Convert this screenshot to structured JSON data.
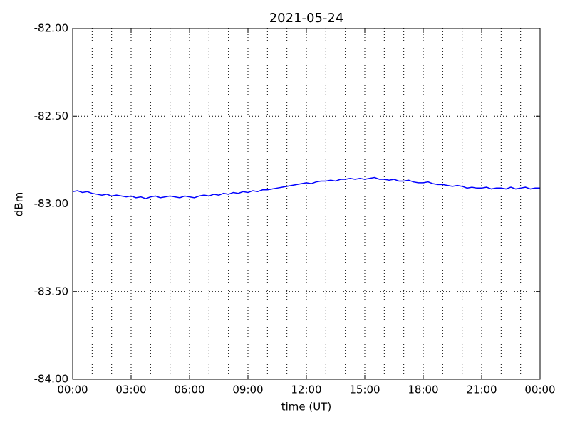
{
  "chart_data": {
    "type": "line",
    "title": "2021-05-24",
    "xlabel": "time (UT)",
    "ylabel": "dBm",
    "xlim": [
      0,
      24
    ],
    "ylim": [
      -84,
      -82
    ],
    "xticks": [
      {
        "value": 0,
        "label": "00:00"
      },
      {
        "value": 3,
        "label": "03:00"
      },
      {
        "value": 6,
        "label": "06:00"
      },
      {
        "value": 9,
        "label": "09:00"
      },
      {
        "value": 12,
        "label": "12:00"
      },
      {
        "value": 15,
        "label": "15:00"
      },
      {
        "value": 18,
        "label": "18:00"
      },
      {
        "value": 21,
        "label": "21:00"
      },
      {
        "value": 24,
        "label": "00:00"
      }
    ],
    "yticks": [
      {
        "value": -84,
        "label": "-84.00"
      },
      {
        "value": -83.5,
        "label": "-83.50"
      },
      {
        "value": -83,
        "label": "-83.00"
      },
      {
        "value": -82.5,
        "label": "-82.50"
      },
      {
        "value": -82,
        "label": "-82.00"
      }
    ],
    "xgrid": [
      0,
      1,
      2,
      3,
      4,
      5,
      6,
      7,
      8,
      9,
      10,
      11,
      12,
      13,
      14,
      15,
      16,
      17,
      18,
      19,
      20,
      21,
      22,
      23,
      24
    ],
    "grid": true,
    "x": [
      0,
      0.25,
      0.5,
      0.75,
      1,
      1.25,
      1.5,
      1.75,
      2,
      2.25,
      2.5,
      2.75,
      3,
      3.25,
      3.5,
      3.75,
      4,
      4.25,
      4.5,
      4.75,
      5,
      5.25,
      5.5,
      5.75,
      6,
      6.25,
      6.5,
      6.75,
      7,
      7.25,
      7.5,
      7.75,
      8,
      8.25,
      8.5,
      8.75,
      9,
      9.25,
      9.5,
      9.75,
      10,
      10.25,
      10.5,
      10.75,
      11,
      11.25,
      11.5,
      11.75,
      12,
      12.25,
      12.5,
      12.75,
      13,
      13.25,
      13.5,
      13.75,
      14,
      14.25,
      14.5,
      14.75,
      15,
      15.25,
      15.5,
      15.75,
      16,
      16.25,
      16.5,
      16.75,
      17,
      17.25,
      17.5,
      17.75,
      18,
      18.25,
      18.5,
      18.75,
      19,
      19.25,
      19.5,
      19.75,
      20,
      20.25,
      20.5,
      20.75,
      21,
      21.25,
      21.5,
      21.75,
      22,
      22.25,
      22.5,
      22.75,
      23,
      23.25,
      23.5,
      23.75,
      24
    ],
    "series": [
      {
        "color": "#0000ff",
        "values": [
          -82.93,
          -82.925,
          -82.935,
          -82.93,
          -82.94,
          -82.945,
          -82.95,
          -82.945,
          -82.955,
          -82.95,
          -82.955,
          -82.96,
          -82.955,
          -82.965,
          -82.96,
          -82.97,
          -82.96,
          -82.955,
          -82.965,
          -82.96,
          -82.955,
          -82.96,
          -82.965,
          -82.955,
          -82.96,
          -82.965,
          -82.955,
          -82.95,
          -82.955,
          -82.945,
          -82.95,
          -82.94,
          -82.945,
          -82.935,
          -82.94,
          -82.93,
          -82.935,
          -82.925,
          -82.93,
          -82.92,
          -82.92,
          -82.915,
          -82.91,
          -82.905,
          -82.9,
          -82.895,
          -82.89,
          -82.885,
          -82.88,
          -82.885,
          -82.875,
          -82.87,
          -82.87,
          -82.865,
          -82.87,
          -82.86,
          -82.86,
          -82.855,
          -82.86,
          -82.855,
          -82.86,
          -82.855,
          -82.85,
          -82.86,
          -82.86,
          -82.865,
          -82.86,
          -82.87,
          -82.87,
          -82.865,
          -82.875,
          -82.88,
          -82.88,
          -82.875,
          -82.885,
          -82.89,
          -82.89,
          -82.895,
          -82.9,
          -82.895,
          -82.9,
          -82.91,
          -82.905,
          -82.91,
          -82.91,
          -82.905,
          -82.915,
          -82.91,
          -82.91,
          -82.915,
          -82.905,
          -82.915,
          -82.91,
          -82.905,
          -82.915,
          -82.91,
          -82.91
        ]
      }
    ]
  }
}
